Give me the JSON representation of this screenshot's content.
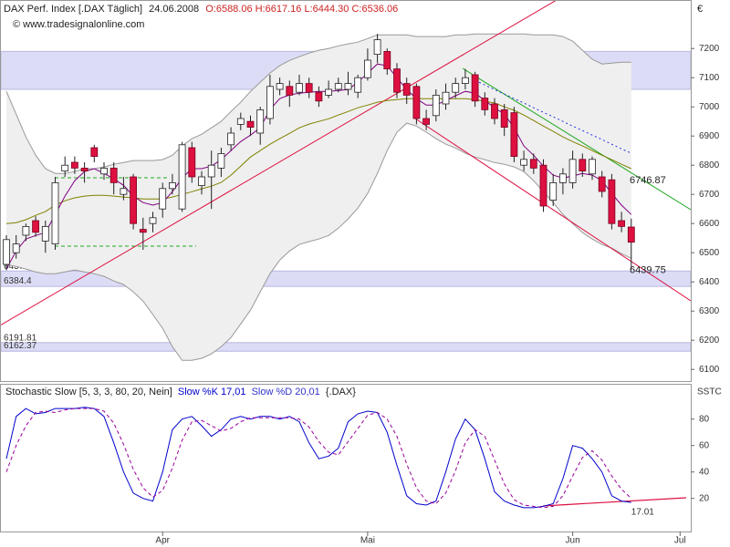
{
  "chart_data": [
    {
      "type": "candlestick",
      "title": "DAX Perf. Index [.DAX  Täglich]",
      "date": "24.06.2008",
      "quote": "O:6588.06 H:6617.16 L:6444.30 C:6536.06",
      "source": "© www.tradesignalonline.com",
      "currency": "€",
      "categories": [
        null,
        null,
        null,
        null,
        null,
        null,
        null,
        null,
        null,
        null,
        null,
        null,
        null,
        null,
        null,
        null,
        "Apr",
        null,
        null,
        null,
        null,
        null,
        null,
        null,
        null,
        null,
        null,
        null,
        null,
        null,
        null,
        null,
        null,
        null,
        null,
        null,
        null,
        "Mai",
        null,
        null,
        null,
        null,
        null,
        null,
        null,
        null,
        null,
        null,
        null,
        null,
        null,
        null,
        null,
        null,
        null,
        null,
        null,
        null,
        "Jun",
        null,
        null,
        null,
        null,
        null,
        null,
        null,
        null,
        null,
        null,
        "Jul"
      ],
      "open": [
        6460,
        6500,
        6560,
        6610,
        6540,
        6530,
        6780,
        6810,
        6790,
        6860,
        6770,
        6790,
        6700,
        6760,
        6580,
        6600,
        6650,
        6720,
        6650,
        6860,
        6730,
        6760,
        6790,
        6870,
        6940,
        6950,
        6910,
        6960,
        7060,
        7070,
        7050,
        7080,
        7050,
        7040,
        7060,
        7060,
        7050,
        7100,
        7180,
        7190,
        7130,
        7080,
        7070,
        6960,
        6970,
        7010,
        7050,
        7080,
        7110,
        7030,
        7010,
        6990,
        6980,
        6800,
        6820,
        6800,
        6680,
        6740,
        6740,
        6820,
        6770,
        6760,
        6750,
        6610,
        6588.06,
        null,
        null,
        null,
        null,
        null
      ],
      "high": [
        6560,
        6560,
        6600,
        6625,
        6610,
        6760,
        6830,
        6830,
        6810,
        6870,
        6810,
        6810,
        6760,
        6770,
        6620,
        6640,
        6740,
        6770,
        6880,
        6880,
        6780,
        6850,
        6860,
        6930,
        6980,
        6970,
        7000,
        7110,
        7100,
        7090,
        7110,
        7100,
        7070,
        7090,
        7100,
        7120,
        7110,
        7200,
        7250,
        7200,
        7150,
        7100,
        7080,
        6990,
        7060,
        7080,
        7100,
        7130,
        7120,
        7050,
        7030,
        7010,
        7000,
        6850,
        6840,
        6820,
        6770,
        6790,
        6850,
        6840,
        6830,
        6780,
        6770,
        6640,
        6617.16,
        null,
        null,
        null,
        null,
        null
      ],
      "low": [
        6440,
        6480,
        6540,
        6555,
        6500,
        6510,
        6760,
        6770,
        6740,
        6810,
        6750,
        6700,
        6680,
        6580,
        6510,
        6570,
        6620,
        6700,
        6640,
        6740,
        6700,
        6650,
        6760,
        6850,
        6920,
        6900,
        6870,
        6940,
        7040,
        7000,
        7040,
        7030,
        7000,
        7030,
        7050,
        7040,
        7030,
        7090,
        7150,
        7110,
        7030,
        7010,
        6940,
        6920,
        6950,
        6990,
        7030,
        7060,
        7000,
        6970,
        6940,
        6900,
        6810,
        6780,
        6770,
        6640,
        6660,
        6700,
        6720,
        6760,
        6750,
        6690,
        6580,
        6570,
        6444.3,
        null,
        null,
        null,
        null,
        null
      ],
      "close": [
        6545,
        6530,
        6590,
        6570,
        6590,
        6740,
        6800,
        6790,
        6780,
        6830,
        6790,
        6740,
        6720,
        6600,
        6570,
        6620,
        6720,
        6740,
        6870,
        6760,
        6760,
        6800,
        6840,
        6910,
        6960,
        6930,
        6990,
        7070,
        7080,
        7040,
        7080,
        7050,
        7020,
        7060,
        7080,
        7080,
        7100,
        7160,
        7230,
        7130,
        7050,
        7040,
        6960,
        6940,
        7040,
        7050,
        7080,
        7100,
        7020,
        6990,
        6960,
        6930,
        6830,
        6820,
        6790,
        6660,
        6740,
        6770,
        6820,
        6780,
        6820,
        6710,
        6600,
        6590,
        6536.06,
        null,
        null,
        null,
        null,
        null
      ],
      "up_color": "#ffffff",
      "down_color": "#dd1040",
      "bollinger": {
        "color": "#999999",
        "fill": "#efefef",
        "upper": [
          7053,
          6975,
          6897,
          6834,
          6788,
          6772,
          6772,
          6778,
          6788,
          6788,
          6794,
          6803,
          6809,
          6816,
          6816,
          6816,
          6819,
          6834,
          6866,
          6891,
          6906,
          6928,
          6950,
          6984,
          7016,
          7053,
          7084,
          7116,
          7141,
          7159,
          7172,
          7184,
          7194,
          7200,
          7209,
          7216,
          7222,
          7234,
          7247,
          7247,
          7247,
          7247,
          7241,
          7241,
          7241,
          7241,
          7247,
          7247,
          7250,
          7250,
          7250,
          7250,
          7250,
          7250,
          7247,
          7247,
          7247,
          7241,
          7225,
          7194,
          7163,
          7147,
          7150,
          7153,
          7153,
          null,
          null,
          null,
          null,
          null
        ],
        "lower": [
          6459,
          6453,
          6444,
          6434,
          6428,
          6428,
          6434,
          6441,
          6434,
          6428,
          6419,
          6403,
          6391,
          6366,
          6334,
          6288,
          6241,
          6178,
          6131,
          6131,
          6138,
          6153,
          6178,
          6209,
          6256,
          6303,
          6366,
          6428,
          6475,
          6506,
          6528,
          6538,
          6547,
          6559,
          6584,
          6616,
          6653,
          6703,
          6772,
          6850,
          6913,
          6944,
          6934,
          6913,
          6891,
          6872,
          6859,
          6841,
          6828,
          6819,
          6809,
          6803,
          6794,
          6778,
          6747,
          6709,
          6672,
          6631,
          6600,
          6569,
          6547,
          6528,
          6516,
          6497,
          6481,
          null,
          null,
          null,
          null,
          null
        ]
      },
      "series": [
        {
          "color": "#808000",
          "values": [
            6600,
            6603,
            6613,
            6628,
            6641,
            6663,
            6678,
            6688,
            6694,
            6697,
            6697,
            6694,
            6691,
            6688,
            6684,
            6684,
            6684,
            6691,
            6700,
            6709,
            6719,
            6728,
            6741,
            6766,
            6797,
            6828,
            6850,
            6872,
            6891,
            6909,
            6928,
            6941,
            6950,
            6959,
            6972,
            6984,
            6997,
            7006,
            7016,
            7022,
            7025,
            7028,
            7028,
            7028,
            7028,
            7028,
            7028,
            7028,
            7025,
            7019,
            7013,
            7000,
            6988,
            6972,
            6953,
            6934,
            6916,
            6897,
            6881,
            6866,
            6850,
            6834,
            6819,
            6803,
            6788,
            null,
            null,
            null,
            null,
            null
          ]
        },
        {
          "color": "#800080",
          "values": [
            6444,
            6506,
            6547,
            6559,
            6569,
            6631,
            6694,
            6747,
            6778,
            6788,
            6772,
            6753,
            6731,
            6694,
            6672,
            6663,
            6672,
            6709,
            6756,
            6788,
            6788,
            6797,
            6819,
            6850,
            6881,
            6903,
            6928,
            6991,
            7028,
            7041,
            7047,
            7050,
            7053,
            7053,
            7056,
            7059,
            7084,
            7116,
            7147,
            7141,
            7100,
            7059,
            7028,
            7006,
            7006,
            7022,
            7038,
            7053,
            7047,
            7022,
            6997,
            6975,
            6928,
            6866,
            6834,
            6797,
            6766,
            6756,
            6763,
            6772,
            6766,
            6747,
            6703,
            6663,
            6631,
            null,
            null,
            null,
            null,
            null
          ]
        },
        {
          "color": "#2233dd",
          "dash": true,
          "values": [
            null,
            null,
            null,
            null,
            null,
            null,
            null,
            null,
            null,
            null,
            null,
            null,
            null,
            null,
            null,
            null,
            null,
            null,
            null,
            null,
            null,
            null,
            null,
            null,
            null,
            null,
            null,
            null,
            null,
            null,
            null,
            null,
            null,
            null,
            null,
            null,
            null,
            null,
            null,
            null,
            null,
            null,
            null,
            null,
            null,
            null,
            null,
            null,
            7091,
            7075,
            7059,
            7044,
            7028,
            7013,
            6997,
            6981,
            6966,
            6950,
            6934,
            6919,
            6903,
            6888,
            6872,
            6856,
            6841,
            null,
            null,
            null,
            null,
            null
          ]
        }
      ],
      "zones": [
        {
          "low": 7060,
          "high": 7190,
          "color": "#dcdcf6",
          "labeled": false
        },
        {
          "low": 6384.4,
          "high": 6437.3,
          "color": "#dcdcf6",
          "labeled": true
        },
        {
          "low": 6162.37,
          "high": 6191.81,
          "color": "#dcdcf6",
          "labeled": true
        }
      ],
      "price_labels": [
        {
          "value": 6746.87,
          "color": "#22aa22"
        },
        {
          "value": 6439.75,
          "color": "#dd1040"
        }
      ],
      "ylim": [
        6060,
        7360
      ],
      "yticks": [
        6100,
        6200,
        6300,
        6400,
        6500,
        6600,
        6700,
        6800,
        6900,
        7000,
        7100,
        7200
      ],
      "grid": false
    },
    {
      "type": "line",
      "title": "Stochastic Slow [5, 3, 3, 80, 20, Nein]",
      "source": "{.DAX}",
      "axis_label": "SSTC",
      "series": [
        {
          "name": "Slow %K 17,01",
          "color": "#0000cc",
          "values": [
            50,
            82,
            88,
            84,
            85,
            88,
            88,
            88,
            89,
            88,
            82,
            62,
            40,
            24,
            20,
            18,
            40,
            72,
            80,
            82,
            75,
            67,
            72,
            80,
            82,
            80,
            82,
            82,
            80,
            82,
            78,
            62,
            50,
            52,
            58,
            78,
            84,
            86,
            85,
            70,
            45,
            22,
            16,
            15,
            18,
            40,
            65,
            80,
            72,
            50,
            25,
            18,
            15,
            13,
            13,
            14,
            16,
            35,
            60,
            58,
            50,
            40,
            22,
            18,
            17.01,
            null,
            null,
            null,
            null,
            null
          ]
        },
        {
          "name": "Slow %D 20,01",
          "color": "#990099",
          "dash": true,
          "values": [
            40,
            60,
            75,
            85,
            86,
            85,
            87,
            88,
            88,
            88,
            86,
            77,
            61,
            42,
            28,
            21,
            26,
            43,
            64,
            78,
            79,
            75,
            71,
            73,
            78,
            81,
            81,
            81,
            81,
            81,
            80,
            74,
            63,
            55,
            53,
            63,
            73,
            83,
            85,
            80,
            67,
            46,
            28,
            18,
            16,
            24,
            41,
            62,
            72,
            67,
            49,
            31,
            19,
            15,
            14,
            13,
            14,
            22,
            37,
            51,
            56,
            49,
            37,
            27,
            20.01,
            null,
            null,
            null,
            null,
            null
          ]
        }
      ],
      "last_label_color": "#dd1040",
      "ylim": [
        -5,
        106
      ],
      "yticks": [
        20,
        40,
        60,
        80
      ],
      "grid": false
    }
  ]
}
